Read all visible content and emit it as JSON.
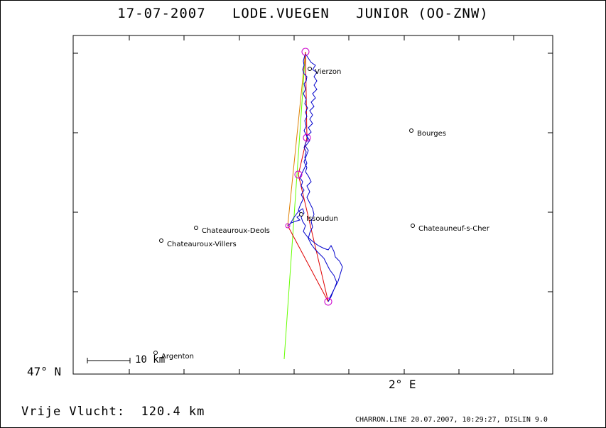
{
  "title": "17-07-2007   LODE.VUEGEN   JUNIOR (OO-ZNW)",
  "lat_label": "47° N",
  "lon_label": "2° E",
  "distance": "Vrije Vlucht:  120.4 km",
  "scale_label": "10 km",
  "footer": "CHARRON.LINE 20.07.2007, 10:29:27, DISLIN 9.0",
  "colors": {
    "track": "#0000cc",
    "task_red": "#e00000",
    "task_orange": "#e08000",
    "task_green": "#66ff00",
    "turnpoint": "#cc00cc",
    "frame": "#000000"
  },
  "towns": [
    {
      "name": "Vierzon"
    },
    {
      "name": "Bourges"
    },
    {
      "name": "Issoudun"
    },
    {
      "name": "Chateauroux-Deols"
    },
    {
      "name": "Chateauneuf-s-Cher"
    },
    {
      "name": "Chateauroux-Villers"
    },
    {
      "name": "Argenton"
    }
  ],
  "icons": [
    "turnpoint-circle-icon",
    "town-marker-icon"
  ]
}
